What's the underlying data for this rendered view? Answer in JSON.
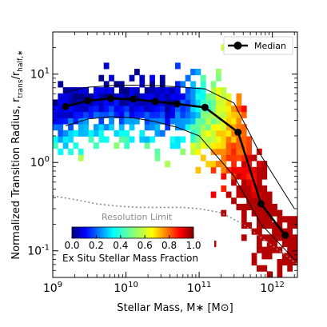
{
  "chart_data": {
    "type": "heatmap",
    "xlabel": "Stellar Mass, M∗ [M⊙]",
    "ylabel": "Normalized Transition Radius, r_trans/r_half,∗",
    "xscale": "log",
    "yscale": "log",
    "xlim": [
      1000000000,
      2200000000000
    ],
    "ylim": [
      0.05,
      30
    ],
    "x_ticks": [
      {
        "value": 1000000000,
        "label": "10^9"
      },
      {
        "value": 10000000000,
        "label": "10^10"
      },
      {
        "value": 100000000000,
        "label": "10^11"
      },
      {
        "value": 1000000000000,
        "label": "10^12"
      }
    ],
    "y_ticks": [
      {
        "value": 0.1,
        "label": "10^-1"
      },
      {
        "value": 1,
        "label": "10^0"
      },
      {
        "value": 10,
        "label": "10^1"
      }
    ],
    "grid": false,
    "legend": {
      "position": "top-right",
      "entries": [
        "Median"
      ]
    },
    "colorbar": {
      "label": "Ex Situ Stellar Mass Fraction",
      "range": [
        0,
        1
      ],
      "ticks": [
        "0.0",
        "0.2",
        "0.4",
        "0.6",
        "0.8",
        "1.0"
      ],
      "colormap": "jet"
    },
    "annotations": [
      {
        "text": "Resolution Limit"
      }
    ],
    "series": [
      {
        "name": "Median",
        "color": "#000000",
        "x": [
          1500000000,
          3000000000,
          6200000000,
          12500000000,
          25000000000,
          50000000000,
          120000000000,
          340000000000,
          700000000000,
          1500000000000
        ],
        "y": [
          4.3,
          5.0,
          5.3,
          5.2,
          4.9,
          4.6,
          4.2,
          2.2,
          0.34,
          0.15
        ]
      },
      {
        "name": "",
        "color": "#000000",
        "x": [
          1500000000,
          3000000000,
          6200000000,
          12500000000,
          25000000000,
          50000000000,
          120000000000,
          300000000000,
          700000000000,
          2000000000000
        ],
        "y": [
          6.3,
          7.1,
          7.4,
          7.5,
          7.4,
          7.2,
          6.8,
          4.7,
          1.2,
          0.3
        ]
      },
      {
        "name": "",
        "color": "#000000",
        "x": [
          1500000000,
          3000000000,
          6200000000,
          12500000000,
          25000000000,
          50000000000,
          100000000000,
          300000000000,
          700000000000,
          2000000000000
        ],
        "y": [
          2.6,
          3.1,
          3.3,
          3.2,
          2.9,
          2.5,
          2.0,
          0.7,
          0.2,
          0.08
        ]
      },
      {
        "name": "Resolution Limit",
        "color": "#8c8c8c",
        "x": [
          1000000000,
          2000000000,
          4000000000,
          8000000000,
          15000000000,
          30000000000,
          60000000000,
          100000000000,
          200000000000,
          400000000000,
          800000000000,
          1500000000000,
          2200000000000
        ],
        "y": [
          0.42,
          0.38,
          0.34,
          0.32,
          0.31,
          0.31,
          0.31,
          0.3,
          0.27,
          0.2,
          0.13,
          0.09,
          0.07
        ]
      }
    ]
  }
}
